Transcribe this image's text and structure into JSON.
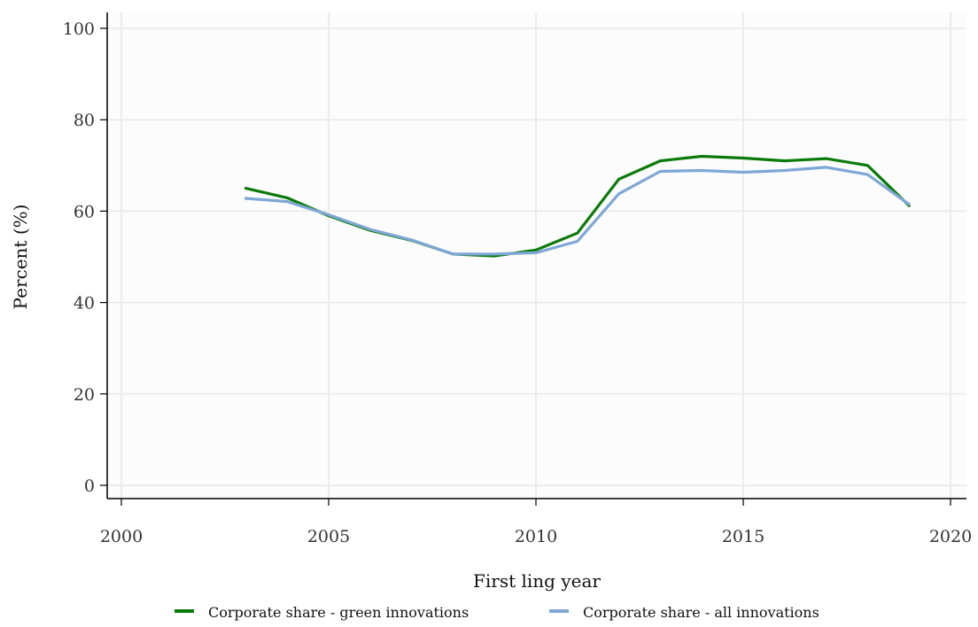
{
  "chart_data": {
    "type": "line",
    "xlabel": "First   ling year",
    "ylabel": "Percent (%)",
    "xlim": [
      2000,
      2020
    ],
    "ylim": [
      0,
      100
    ],
    "xticks": [
      "2000",
      "2005",
      "2010",
      "2015",
      "2020"
    ],
    "yticks": [
      "0",
      "20",
      "40",
      "60",
      "80",
      "100"
    ],
    "grid": true,
    "legend_position": "bottom",
    "x": [
      2003,
      2004,
      2005,
      2006,
      2007,
      2008,
      2009,
      2010,
      2011,
      2012,
      2013,
      2014,
      2015,
      2016,
      2017,
      2018,
      2019
    ],
    "series": [
      {
        "name": "Corporate share - green innovations",
        "color": "#0a7a0a",
        "values": [
          65.0,
          62.9,
          59.0,
          55.8,
          53.6,
          50.6,
          50.2,
          51.5,
          55.2,
          67.0,
          71.0,
          72.0,
          71.6,
          71.0,
          71.5,
          70.0,
          61.2
        ]
      },
      {
        "name": "Corporate share - all innovations",
        "color": "#7fa7d6",
        "values": [
          62.8,
          62.1,
          59.2,
          56.0,
          53.7,
          50.6,
          50.6,
          50.9,
          53.4,
          63.8,
          68.7,
          68.9,
          68.5,
          68.9,
          69.6,
          68.0,
          61.5
        ]
      }
    ]
  }
}
